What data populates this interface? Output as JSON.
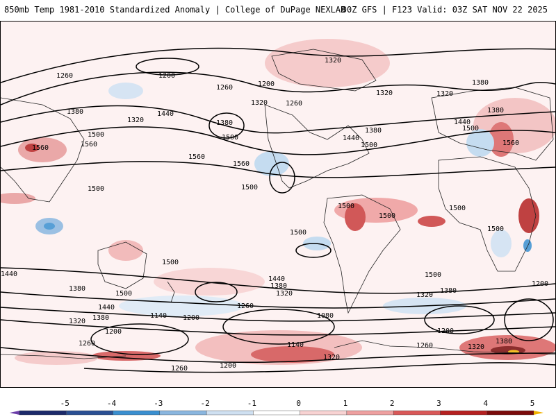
{
  "header": {
    "left_title": "850mb Temp 1981-2010 Standardized Anomaly | College of DuPage NEXLAB",
    "right_title": "00Z GFS | F123 Valid: 03Z SAT NOV 22 2025"
  },
  "contour_labels": [
    "1320",
    "1260",
    "1200",
    "1260",
    "1200",
    "1320",
    "1260",
    "1380",
    "1440",
    "1380",
    "1320",
    "1380",
    "1500",
    "1560",
    "1560",
    "1500",
    "1560",
    "1500",
    "1440",
    "1560",
    "1380",
    "1440",
    "1500",
    "1560",
    "1320",
    "1380",
    "1320",
    "1500",
    "1500",
    "1500",
    "1500",
    "1500",
    "1440",
    "1380",
    "1500",
    "1500",
    "1440",
    "1380",
    "1320",
    "1440",
    "1380",
    "1320",
    "1260",
    "1140",
    "1200",
    "1080",
    "1260",
    "1200",
    "1140",
    "1200",
    "1320",
    "1260",
    "1200",
    "1260",
    "1320",
    "1380",
    "1380",
    "1200",
    "1320",
    "1500",
    "1500",
    "1500"
  ],
  "colorbar": {
    "ticks": [
      "-5",
      "-4",
      "-3",
      "-2",
      "-1",
      "0",
      "1",
      "2",
      "3",
      "4",
      "5"
    ],
    "colors": [
      "#1c2a6a",
      "#2a4f93",
      "#3a8fd0",
      "#8ab6df",
      "#cfe0f1",
      "#ffffff",
      "#f8d3d3",
      "#eea0a0",
      "#d95858",
      "#b52020",
      "#7a0a0a"
    ],
    "low_cap_color": "#6a3ca8",
    "high_cap_color": "#f2b300"
  }
}
